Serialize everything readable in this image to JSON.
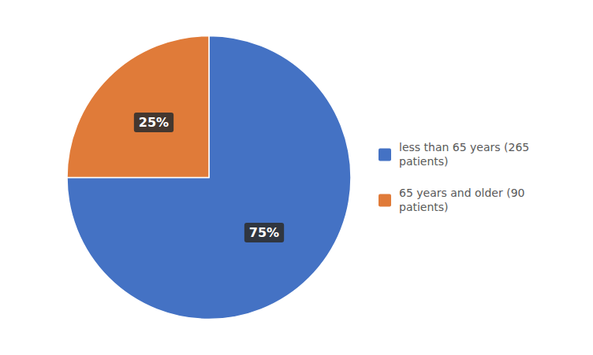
{
  "chart_data": {
    "type": "pie",
    "categories": [
      "less than 65 years (265\npatients)",
      "65 years and older (90\npatients)"
    ],
    "values": [
      75,
      25
    ],
    "value_labels": [
      "75%",
      "25%"
    ],
    "colors": [
      "#4472C4",
      "#E07B39"
    ],
    "data_labels": true,
    "legend": "right"
  }
}
